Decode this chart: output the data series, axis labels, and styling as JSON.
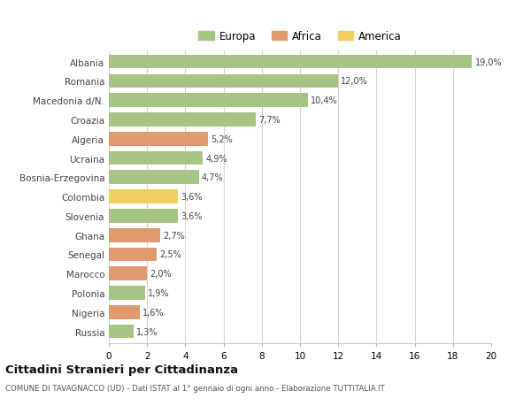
{
  "countries": [
    "Albania",
    "Romania",
    "Macedonia d/N.",
    "Croazia",
    "Algeria",
    "Ucraina",
    "Bosnia-Erzegovina",
    "Colombia",
    "Slovenia",
    "Ghana",
    "Senegal",
    "Marocco",
    "Polonia",
    "Nigeria",
    "Russia"
  ],
  "values": [
    19.0,
    12.0,
    10.4,
    7.7,
    5.2,
    4.9,
    4.7,
    3.6,
    3.6,
    2.7,
    2.5,
    2.0,
    1.9,
    1.6,
    1.3
  ],
  "labels": [
    "19,0%",
    "12,0%",
    "10,4%",
    "7,7%",
    "5,2%",
    "4,9%",
    "4,7%",
    "3,6%",
    "3,6%",
    "2,7%",
    "2,5%",
    "2,0%",
    "1,9%",
    "1,6%",
    "1,3%"
  ],
  "continents": [
    "Europa",
    "Europa",
    "Europa",
    "Europa",
    "Africa",
    "Europa",
    "Europa",
    "America",
    "Europa",
    "Africa",
    "Africa",
    "Africa",
    "Europa",
    "Africa",
    "Europa"
  ],
  "colors": {
    "Europa": "#a8c484",
    "Africa": "#e09a6e",
    "America": "#f0d060"
  },
  "xlim": [
    0,
    20
  ],
  "xticks": [
    0,
    2,
    4,
    6,
    8,
    10,
    12,
    14,
    16,
    18,
    20
  ],
  "title": "Cittadini Stranieri per Cittadinanza",
  "subtitle": "COMUNE DI TAVAGNACCO (UD) - Dati ISTAT al 1° gennaio di ogni anno - Elaborazione TUTTITALIA.IT",
  "bg_color": "#ffffff",
  "grid_color": "#d5d5d5",
  "bar_height": 0.72
}
